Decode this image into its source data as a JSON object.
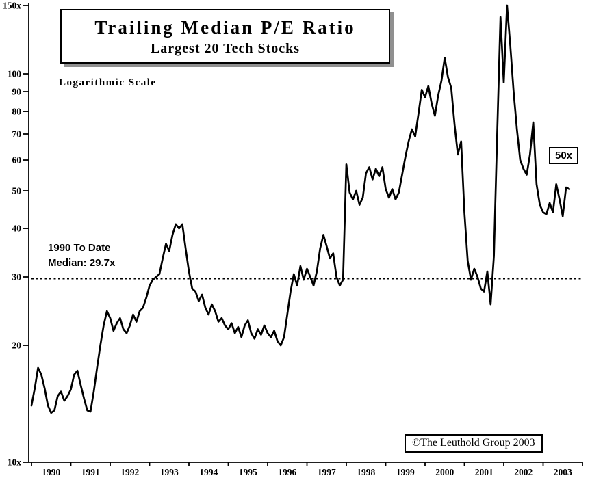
{
  "page": {
    "background": "#ffffff",
    "line_color": "#000000"
  },
  "title_box": {
    "title": "Trailing Median P/E Ratio",
    "subtitle": "Largest 20 Tech Stocks"
  },
  "labels": {
    "scale_note": "Logarithmic Scale",
    "median_line1": "1990 To Date",
    "median_line2": "Median: 29.7x",
    "level_tag": "50x",
    "attribution": "©The Leuthold Group 2003"
  },
  "chart_data": {
    "type": "line",
    "title": "Trailing Median P/E Ratio",
    "subtitle": "Largest 20 Tech Stocks",
    "xlabel": "",
    "ylabel": "",
    "yscale": "log",
    "ylim": [
      10,
      150
    ],
    "xlim": [
      1989.92,
      2004.0
    ],
    "grid": false,
    "legend": "none",
    "yticks": [
      {
        "value": 10,
        "label": "10x"
      },
      {
        "value": 20,
        "label": "20"
      },
      {
        "value": 30,
        "label": "30"
      },
      {
        "value": 40,
        "label": "40"
      },
      {
        "value": 50,
        "label": "50"
      },
      {
        "value": 60,
        "label": "60"
      },
      {
        "value": 70,
        "label": "70"
      },
      {
        "value": 80,
        "label": "80"
      },
      {
        "value": 90,
        "label": "90"
      },
      {
        "value": 100,
        "label": "100"
      },
      {
        "value": 150,
        "label": "150x"
      }
    ],
    "xticks": [
      1990,
      1991,
      1992,
      1993,
      1994,
      1995,
      1996,
      1997,
      1998,
      1999,
      2000,
      2001,
      2002,
      2003
    ],
    "median_value": 29.7,
    "median_label": "1990 To Date Median: 29.7x",
    "annotations": [
      {
        "text": "50x",
        "x": 2003.2,
        "y": 60
      }
    ],
    "attribution": "©The Leuthold Group 2003",
    "series": [
      {
        "name": "Trailing Median P/E, Largest 20 Tech Stocks (monthly)",
        "x_start": 1990.0,
        "x_step": 0.0833333,
        "values": [
          14.0,
          15.5,
          17.5,
          16.8,
          15.5,
          14.0,
          13.4,
          13.6,
          14.8,
          15.2,
          14.4,
          14.8,
          15.4,
          16.8,
          17.2,
          15.8,
          14.6,
          13.6,
          13.5,
          15.2,
          17.5,
          20.0,
          22.5,
          24.5,
          23.5,
          21.8,
          22.8,
          23.5,
          22.0,
          21.5,
          22.5,
          24.0,
          23.0,
          24.5,
          25.0,
          26.5,
          28.5,
          29.5,
          30.0,
          30.5,
          33.5,
          36.5,
          35.0,
          38.5,
          41.0,
          40.0,
          41.0,
          35.5,
          31.0,
          28.0,
          27.5,
          26.0,
          27.0,
          25.0,
          24.0,
          25.5,
          24.5,
          23.0,
          23.5,
          22.5,
          22.0,
          22.8,
          21.5,
          22.3,
          21.0,
          22.5,
          23.2,
          21.5,
          20.8,
          22.0,
          21.3,
          22.5,
          21.5,
          21.0,
          21.8,
          20.5,
          20.0,
          21.0,
          24.0,
          27.5,
          30.5,
          28.5,
          32.0,
          29.5,
          31.5,
          30.0,
          28.5,
          31.0,
          35.5,
          38.5,
          36.0,
          33.5,
          34.5,
          30.0,
          28.5,
          29.5,
          58.5,
          49.5,
          47.5,
          50.0,
          46.0,
          48.0,
          55.5,
          57.5,
          53.5,
          57.0,
          54.5,
          57.5,
          50.5,
          48.0,
          50.5,
          47.5,
          49.5,
          55.0,
          61.0,
          67.0,
          72.0,
          69.0,
          79.0,
          91.0,
          87.0,
          93.0,
          84.0,
          78.0,
          88.0,
          96.0,
          110.0,
          98.0,
          92.0,
          74.0,
          62.0,
          67.0,
          44.0,
          33.0,
          29.5,
          31.5,
          30.0,
          28.0,
          27.5,
          31.0,
          25.5,
          34.0,
          70.0,
          140.0,
          95.0,
          150.0,
          118.0,
          90.0,
          72.0,
          60.0,
          57.0,
          55.0,
          62.0,
          75.0,
          52.0,
          46.0,
          44.0,
          43.5,
          46.5,
          44.0,
          52.0,
          47.5,
          43.0,
          51.0,
          50.5
        ]
      }
    ]
  }
}
